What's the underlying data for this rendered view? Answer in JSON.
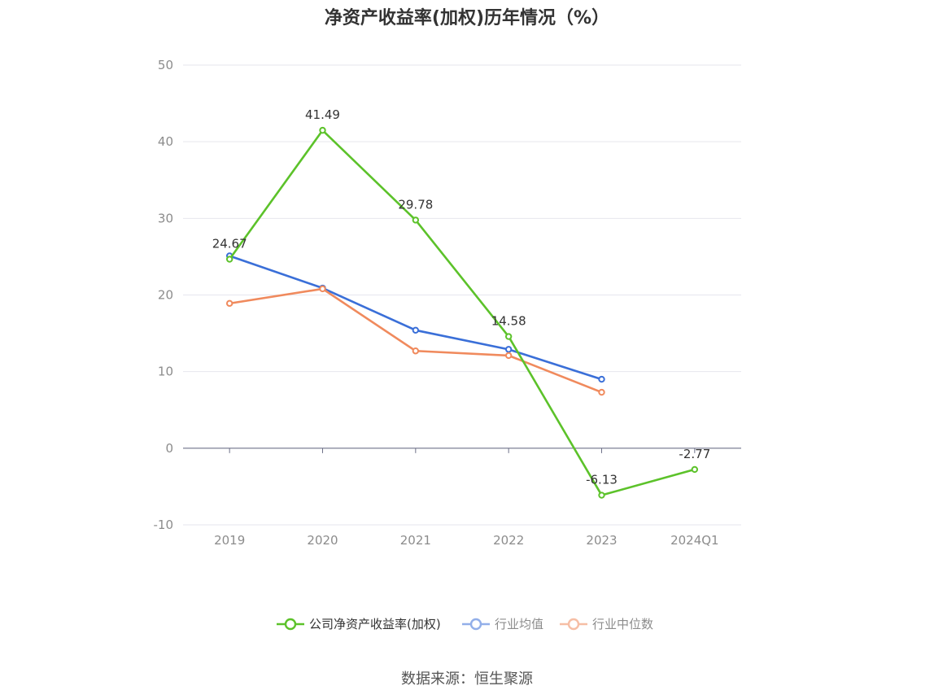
{
  "title": "净资产收益率(加权)历年情况（%）",
  "source": "数据来源：恒生聚源",
  "colors": {
    "company": "#5cc22a",
    "industry_avg": "#3a6fd8",
    "industry_median": "#f08a5d",
    "grid": "#e6e6ee",
    "axis": "#6e7088"
  },
  "chart_data": {
    "type": "line",
    "title": "净资产收益率(加权)历年情况（%）",
    "xlabel": "",
    "ylabel": "",
    "categories": [
      "2019",
      "2020",
      "2021",
      "2022",
      "2023",
      "2024Q1"
    ],
    "ylim": [
      -10,
      50
    ],
    "yticks": [
      -10,
      0,
      10,
      20,
      30,
      40,
      50
    ],
    "grid": true,
    "legend_position": "bottom",
    "series": [
      {
        "name": "公司净资产收益率(加权)",
        "color": "#5cc22a",
        "values": [
          24.67,
          41.49,
          29.78,
          14.58,
          -6.13,
          -2.77
        ],
        "labels": [
          "24.67",
          "41.49",
          "29.78",
          "14.58",
          "-6.13",
          "-2.77"
        ]
      },
      {
        "name": "行业均值",
        "color": "#3a6fd8",
        "values": [
          25.1,
          20.9,
          15.4,
          12.9,
          9.0,
          null
        ]
      },
      {
        "name": "行业中位数",
        "color": "#f08a5d",
        "values": [
          18.9,
          20.8,
          12.7,
          12.1,
          7.3,
          null
        ]
      }
    ]
  }
}
